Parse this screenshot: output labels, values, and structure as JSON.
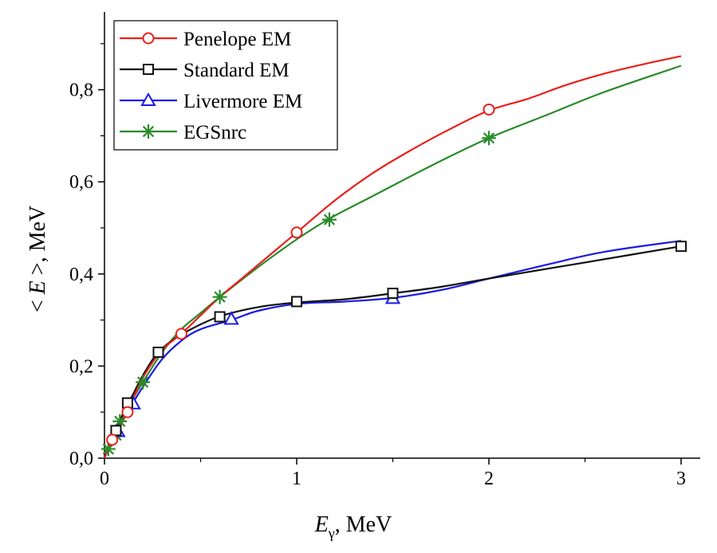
{
  "chart_data": {
    "type": "line",
    "title": "",
    "xlabel": {
      "symbol": "E",
      "subscript": "γ",
      "unit": ", MeV"
    },
    "ylabel": {
      "prefix": "< ",
      "symbol": "E",
      "suffix": " >, MeV"
    },
    "xlim": [
      0,
      3.1
    ],
    "ylim": [
      0,
      0.95
    ],
    "x_ticks": [
      {
        "value": 0,
        "label": "0"
      },
      {
        "value": 1,
        "label": "1"
      },
      {
        "value": 2,
        "label": "2"
      },
      {
        "value": 3,
        "label": "3"
      }
    ],
    "y_ticks": [
      {
        "value": 0,
        "label": "0,0"
      },
      {
        "value": 0.2,
        "label": "0,2"
      },
      {
        "value": 0.4,
        "label": "0,4"
      },
      {
        "value": 0.6,
        "label": "0,6"
      },
      {
        "value": 0.8,
        "label": "0,8"
      }
    ],
    "legend_position": "top-left",
    "series": [
      {
        "name": "Penelope EM",
        "color": "#e8201c",
        "marker": "circle",
        "curve": [
          [
            0,
            0
          ],
          [
            0.02,
            0.02
          ],
          [
            0.05,
            0.045
          ],
          [
            0.1,
            0.085
          ],
          [
            0.15,
            0.13
          ],
          [
            0.2,
            0.175
          ],
          [
            0.3,
            0.235
          ],
          [
            0.4,
            0.27
          ],
          [
            0.5,
            0.31
          ],
          [
            0.6,
            0.35
          ],
          [
            0.7,
            0.385
          ],
          [
            0.8,
            0.42
          ],
          [
            0.9,
            0.455
          ],
          [
            1.0,
            0.49
          ],
          [
            1.2,
            0.56
          ],
          [
            1.4,
            0.62
          ],
          [
            1.6,
            0.67
          ],
          [
            1.8,
            0.715
          ],
          [
            2.0,
            0.755
          ],
          [
            2.2,
            0.78
          ],
          [
            2.4,
            0.81
          ],
          [
            2.6,
            0.835
          ],
          [
            2.8,
            0.855
          ],
          [
            3.0,
            0.873
          ]
        ],
        "markers": [
          [
            0.04,
            0.04
          ],
          [
            0.12,
            0.1
          ],
          [
            0.4,
            0.27
          ],
          [
            1.0,
            0.49
          ],
          [
            2.0,
            0.757
          ]
        ]
      },
      {
        "name": "Standard EM",
        "color": "#111111",
        "marker": "square",
        "curve": [
          [
            0,
            0.01
          ],
          [
            0.03,
            0.03
          ],
          [
            0.06,
            0.06
          ],
          [
            0.1,
            0.1
          ],
          [
            0.15,
            0.14
          ],
          [
            0.2,
            0.18
          ],
          [
            0.27,
            0.225
          ],
          [
            0.35,
            0.255
          ],
          [
            0.45,
            0.28
          ],
          [
            0.6,
            0.308
          ],
          [
            0.8,
            0.328
          ],
          [
            1.0,
            0.338
          ],
          [
            1.25,
            0.345
          ],
          [
            1.5,
            0.358
          ],
          [
            1.75,
            0.372
          ],
          [
            2.0,
            0.39
          ],
          [
            2.5,
            0.425
          ],
          [
            3.0,
            0.46
          ]
        ],
        "markers": [
          [
            0.06,
            0.06
          ],
          [
            0.12,
            0.12
          ],
          [
            0.28,
            0.23
          ],
          [
            0.6,
            0.307
          ],
          [
            1.0,
            0.34
          ],
          [
            1.5,
            0.358
          ],
          [
            3.0,
            0.46
          ]
        ]
      },
      {
        "name": "Livermore EM",
        "color": "#1a1ae6",
        "marker": "triangle",
        "curve": [
          [
            0,
            0
          ],
          [
            0.03,
            0.03
          ],
          [
            0.07,
            0.06
          ],
          [
            0.12,
            0.1
          ],
          [
            0.2,
            0.155
          ],
          [
            0.3,
            0.215
          ],
          [
            0.4,
            0.255
          ],
          [
            0.5,
            0.28
          ],
          [
            0.66,
            0.3
          ],
          [
            0.8,
            0.32
          ],
          [
            1.0,
            0.335
          ],
          [
            1.25,
            0.34
          ],
          [
            1.5,
            0.348
          ],
          [
            1.75,
            0.365
          ],
          [
            2.0,
            0.39
          ],
          [
            2.3,
            0.42
          ],
          [
            2.6,
            0.448
          ],
          [
            3.0,
            0.472
          ]
        ],
        "markers": [
          [
            0.07,
            0.058
          ],
          [
            0.15,
            0.118
          ],
          [
            0.66,
            0.302
          ],
          [
            1.5,
            0.347
          ]
        ]
      },
      {
        "name": "EGSnrc",
        "color": "#2a8a2a",
        "marker": "asterisk",
        "curve": [
          [
            0.02,
            0.02
          ],
          [
            0.05,
            0.05
          ],
          [
            0.08,
            0.08
          ],
          [
            0.12,
            0.11
          ],
          [
            0.2,
            0.165
          ],
          [
            0.3,
            0.23
          ],
          [
            0.4,
            0.28
          ],
          [
            0.5,
            0.315
          ],
          [
            0.6,
            0.35
          ],
          [
            0.8,
            0.415
          ],
          [
            1.0,
            0.475
          ],
          [
            1.17,
            0.52
          ],
          [
            1.4,
            0.57
          ],
          [
            1.7,
            0.635
          ],
          [
            2.0,
            0.695
          ],
          [
            2.3,
            0.745
          ],
          [
            2.6,
            0.795
          ],
          [
            3.0,
            0.852
          ]
        ],
        "markers": [
          [
            0.02,
            0.02
          ],
          [
            0.06,
            0.05
          ],
          [
            0.08,
            0.08
          ],
          [
            0.2,
            0.165
          ],
          [
            0.6,
            0.35
          ],
          [
            1.17,
            0.518
          ],
          [
            2.0,
            0.695
          ]
        ]
      }
    ]
  }
}
